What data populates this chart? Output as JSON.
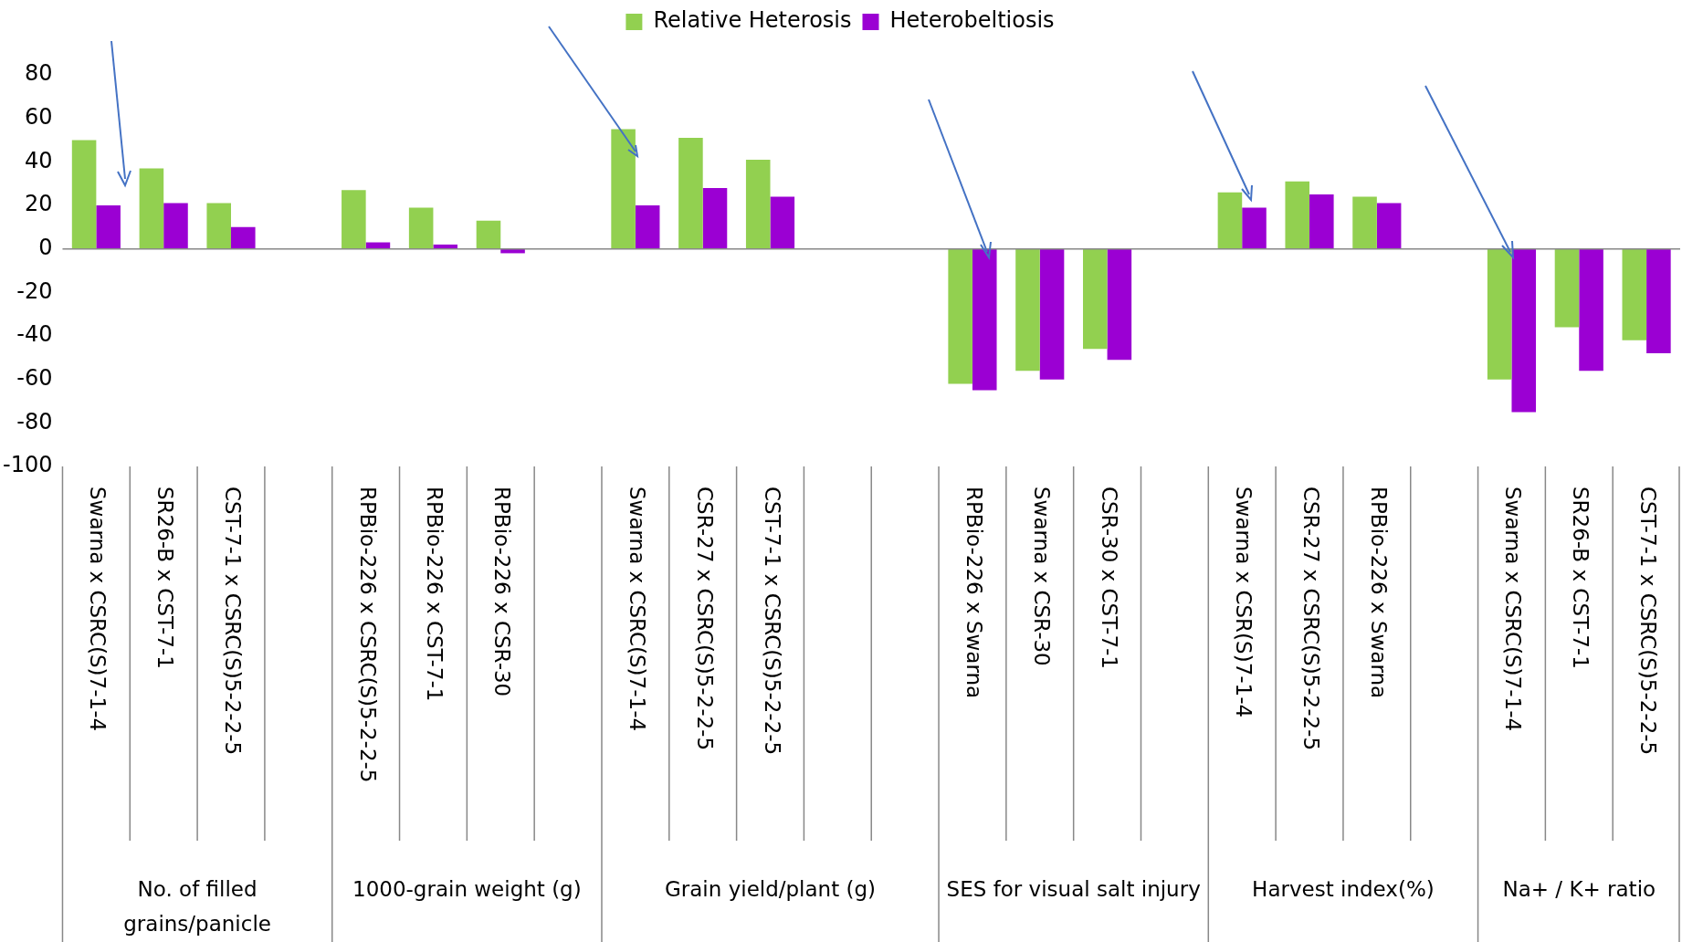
{
  "chart_data": {
    "type": "bar",
    "categories": [
      "Swarna x CSRC(S)7-1-4",
      "SR26-B x CST-7-1",
      "CST-7-1 x CSRC(S)5-2-2-5",
      null,
      "RPBio-226 x CSRC(S)5-2-2-5",
      "RPBio-226 x CST-7-1",
      "RPBio-226 x CSR-30",
      null,
      "Swarna x CSRC(S)7-1-4",
      "CSR-27 x CSRC(S)5-2-2-5",
      "CST-7-1 x CSRC(S)5-2-2-5",
      null,
      null,
      "RPBio-226 x Swarna",
      "Swarna x CSR-30",
      "CSR-30 x CST-7-1",
      null,
      "Swarna x CSR(S)7-1-4",
      "CSR-27 x CSRC(S)5-2-2-5",
      "RPBio-226 x Swarna",
      null,
      "Swarna x CSRC(S)7-1-4",
      "SR26-B x CST-7-1",
      "CST-7-1 x CSRC(S)5-2-2-5"
    ],
    "series": [
      {
        "name": "Relative Heterosis",
        "color": "#92d050",
        "values": [
          50,
          37,
          21,
          null,
          27,
          19,
          13,
          null,
          55,
          51,
          41,
          null,
          null,
          -62,
          -56,
          -46,
          null,
          26,
          31,
          24,
          null,
          -60,
          -36,
          -42
        ]
      },
      {
        "name": "Heterobeltiosis",
        "color": "#9b00d3",
        "values": [
          20,
          21,
          10,
          null,
          3,
          2,
          -2,
          null,
          20,
          28,
          24,
          null,
          null,
          -65,
          -60,
          -51,
          null,
          19,
          25,
          21,
          null,
          -75,
          -56,
          -48
        ]
      }
    ],
    "ylim": [
      -100,
      80
    ],
    "yticks": [
      -100,
      -80,
      -60,
      -40,
      -20,
      0,
      20,
      40,
      60,
      80
    ],
    "legend": "top",
    "annotations": [
      "No. of filled grains/panicle",
      "1000-grain weight (g)",
      "Grain yield/plant (g)",
      "SES for visual salt injury",
      "Harvest index(%)",
      "Na+ / K+ ratio"
    ]
  }
}
